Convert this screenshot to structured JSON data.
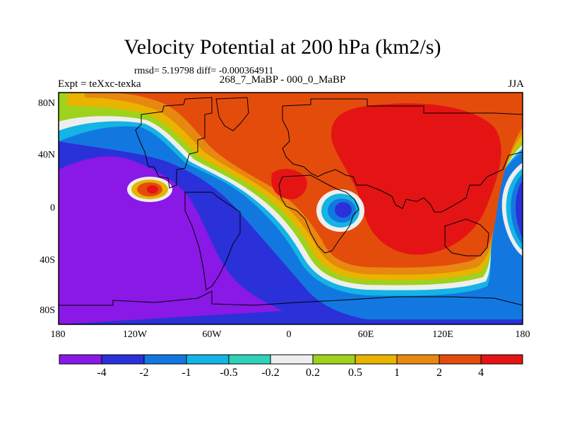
{
  "title": "Velocity Potential at 200 hPa (km2/s)",
  "stats": "rmsd= 5.19798 diff= -0.000364911",
  "experiment": "Expt = teXxc-texka",
  "period": "268_7_MaBP - 000_0_MaBP",
  "season": "JJA",
  "axes": {
    "y_ticks": [
      "80N",
      "40N",
      "0",
      "40S",
      "80S"
    ],
    "x_ticks": [
      "180",
      "120W",
      "60W",
      "0",
      "60E",
      "120E",
      "180"
    ]
  },
  "colorbar": {
    "levels": [
      "-4",
      "-2",
      "-1",
      "-0.5",
      "-0.2",
      "0.2",
      "0.5",
      "1",
      "2",
      "4"
    ],
    "colors": [
      "#8a18e6",
      "#2a31d8",
      "#1278e0",
      "#14b4e4",
      "#2fd2b8",
      "#eeeeee",
      "#9ed21c",
      "#e8b400",
      "#e88810",
      "#e44c0c",
      "#e41414"
    ]
  }
}
